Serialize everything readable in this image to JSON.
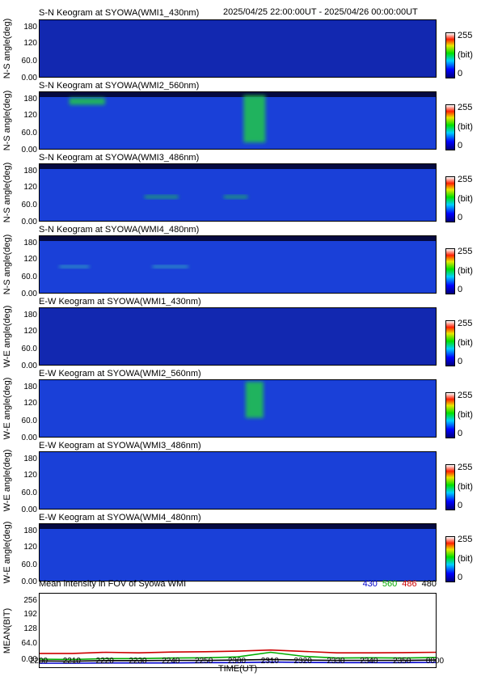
{
  "header": {
    "range": "2025/04/25 22:00:00UT - 2025/04/26 00:00:00UT"
  },
  "colorbar": {
    "max": "255",
    "unit": "(bit)",
    "min": "0"
  },
  "chart_data": [
    {
      "type": "heatmap",
      "title": "S-N Keogram at SYOWA(WMI1_430nm)",
      "ylabel": "N-S angle(deg)",
      "yticks": [
        "180",
        "120",
        "60.0",
        "0.00"
      ],
      "ylim": [
        0,
        180
      ],
      "xlim": [
        2200,
        2400
      ],
      "features": []
    },
    {
      "type": "heatmap",
      "title": "S-N Keogram at SYOWA(WMI2_560nm)",
      "ylabel": "N-S angle(deg)",
      "yticks": [
        "180",
        "120",
        "60.0",
        "0.00"
      ],
      "ylim": [
        0,
        180
      ],
      "xlim": [
        2200,
        2400
      ],
      "features": [
        {
          "t0": 2215,
          "t1": 2233,
          "a0": 140,
          "a1": 162,
          "level": "green"
        },
        {
          "t0": 2303,
          "t1": 2314,
          "a0": 20,
          "a1": 170,
          "level": "green"
        }
      ]
    },
    {
      "type": "heatmap",
      "title": "S-N Keogram at SYOWA(WMI3_486nm)",
      "ylabel": "N-S angle(deg)",
      "yticks": [
        "180",
        "120",
        "60.0",
        "0.00"
      ],
      "ylim": [
        0,
        180
      ],
      "xlim": [
        2200,
        2400
      ],
      "features": [
        {
          "t0": 2253,
          "t1": 2270,
          "a0": 72,
          "a1": 80,
          "level": "green"
        },
        {
          "t0": 2293,
          "t1": 2305,
          "a0": 72,
          "a1": 80,
          "level": "green"
        }
      ]
    },
    {
      "type": "heatmap",
      "title": "S-N Keogram at SYOWA(WMI4_480nm)",
      "ylabel": "N-S angle(deg)",
      "yticks": [
        "180",
        "120",
        "60.0",
        "0.00"
      ],
      "ylim": [
        0,
        180
      ],
      "xlim": [
        2200,
        2400
      ],
      "features": [
        {
          "t0": 2210,
          "t1": 2225,
          "a0": 80,
          "a1": 86,
          "level": "cyan"
        },
        {
          "t0": 2257,
          "t1": 2275,
          "a0": 80,
          "a1": 86,
          "level": "cyan"
        }
      ]
    },
    {
      "type": "heatmap",
      "title": "E-W Keogram at SYOWA(WMI1_430nm)",
      "ylabel": "W-E angle(deg)",
      "yticks": [
        "180",
        "120",
        "60.0",
        "0.00"
      ],
      "ylim": [
        0,
        180
      ],
      "xlim": [
        2200,
        2400
      ],
      "features": []
    },
    {
      "type": "heatmap",
      "title": "E-W Keogram at SYOWA(WMI2_560nm)",
      "ylabel": "W-E angle(deg)",
      "yticks": [
        "180",
        "120",
        "60.0",
        "0.00"
      ],
      "ylim": [
        0,
        180
      ],
      "xlim": [
        2200,
        2400
      ],
      "features": [
        {
          "t0": 2304,
          "t1": 2313,
          "a0": 60,
          "a1": 175,
          "level": "green"
        }
      ]
    },
    {
      "type": "heatmap",
      "title": "E-W Keogram at SYOWA(WMI3_486nm)",
      "ylabel": "W-E angle(deg)",
      "yticks": [
        "180",
        "120",
        "60.0",
        "0.00"
      ],
      "ylim": [
        0,
        180
      ],
      "xlim": [
        2200,
        2400
      ],
      "features": []
    },
    {
      "type": "heatmap",
      "title": "E-W Keogram at SYOWA(WMI4_480nm)",
      "ylabel": "W-E angle(deg)",
      "yticks": [
        "180",
        "120",
        "60.0",
        "0.00"
      ],
      "ylim": [
        0,
        180
      ],
      "xlim": [
        2200,
        2400
      ],
      "features": []
    },
    {
      "type": "line",
      "title": "Mean intensity in FOV of Syowa WMI",
      "ylabel": "MEAN(BIT)",
      "xlabel": "TIME(UT)",
      "yticks": [
        "256",
        "192",
        "128",
        "64.0",
        "0.00"
      ],
      "ylim": [
        0,
        256
      ],
      "xticks": [
        "2200",
        "2210",
        "2220",
        "2230",
        "2240",
        "2250",
        "2300",
        "2310",
        "2320",
        "2330",
        "2340",
        "2350",
        "0000"
      ],
      "x": [
        0,
        10,
        20,
        30,
        40,
        50,
        60,
        70,
        80,
        90,
        100,
        110,
        120
      ],
      "series": [
        {
          "name": "430",
          "color": "#0000cc",
          "values": [
            14,
            14,
            15,
            15,
            15,
            16,
            16,
            18,
            17,
            16,
            16,
            16,
            17
          ]
        },
        {
          "name": "560",
          "color": "#00aa00",
          "values": [
            28,
            27,
            30,
            30,
            32,
            33,
            36,
            52,
            38,
            32,
            33,
            32,
            34
          ]
        },
        {
          "name": "486",
          "color": "#cc0000",
          "values": [
            48,
            48,
            52,
            50,
            53,
            54,
            56,
            60,
            55,
            50,
            50,
            51,
            52
          ]
        },
        {
          "name": "480",
          "color": "#000000",
          "values": [
            22,
            21,
            23,
            23,
            24,
            24,
            25,
            27,
            25,
            24,
            24,
            24,
            25
          ]
        }
      ]
    }
  ]
}
